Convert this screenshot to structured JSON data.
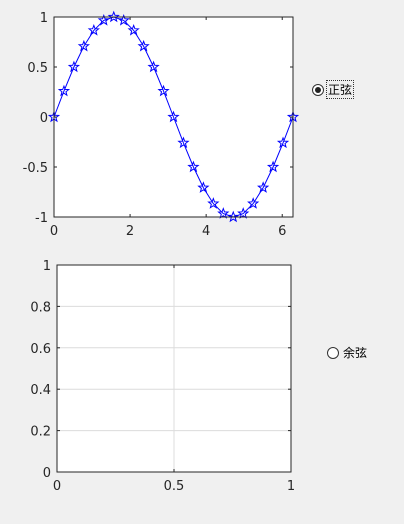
{
  "chart_data": [
    {
      "type": "line",
      "marker": "pentagram",
      "line_color": "#0000ff",
      "x": [
        0,
        0.2618,
        0.5236,
        0.7854,
        1.0472,
        1.309,
        1.5708,
        1.8326,
        2.0944,
        2.3562,
        2.618,
        2.8798,
        3.1416,
        3.4034,
        3.6652,
        3.927,
        4.1888,
        4.4506,
        4.7124,
        4.9742,
        5.236,
        5.4978,
        5.7596,
        6.0214,
        6.2832
      ],
      "y": [
        0,
        0.2588,
        0.5,
        0.7071,
        0.866,
        0.9659,
        1,
        0.9659,
        0.866,
        0.7071,
        0.5,
        0.2588,
        0,
        -0.2588,
        -0.5,
        -0.7071,
        -0.866,
        -0.9659,
        -1,
        -0.9659,
        -0.866,
        -0.7071,
        -0.5,
        -0.2588,
        0
      ],
      "xlim": [
        0,
        6.2832
      ],
      "ylim": [
        -1,
        1
      ],
      "xticks": [
        "0",
        "2",
        "4",
        "6"
      ],
      "yticks": [
        "-1",
        "-0.5",
        "0",
        "0.5",
        "1"
      ],
      "grid": false
    },
    {
      "type": "line",
      "x": [],
      "y": [],
      "xlim": [
        0,
        1
      ],
      "ylim": [
        0,
        1
      ],
      "xticks": [
        "0",
        "0.5",
        "1"
      ],
      "yticks": [
        "0",
        "0.2",
        "0.4",
        "0.6",
        "0.8",
        "1"
      ],
      "grid": true
    }
  ],
  "controls": {
    "radio_sin": {
      "label": "正弦",
      "selected": true
    },
    "radio_cos": {
      "label": "余弦",
      "selected": false
    }
  }
}
